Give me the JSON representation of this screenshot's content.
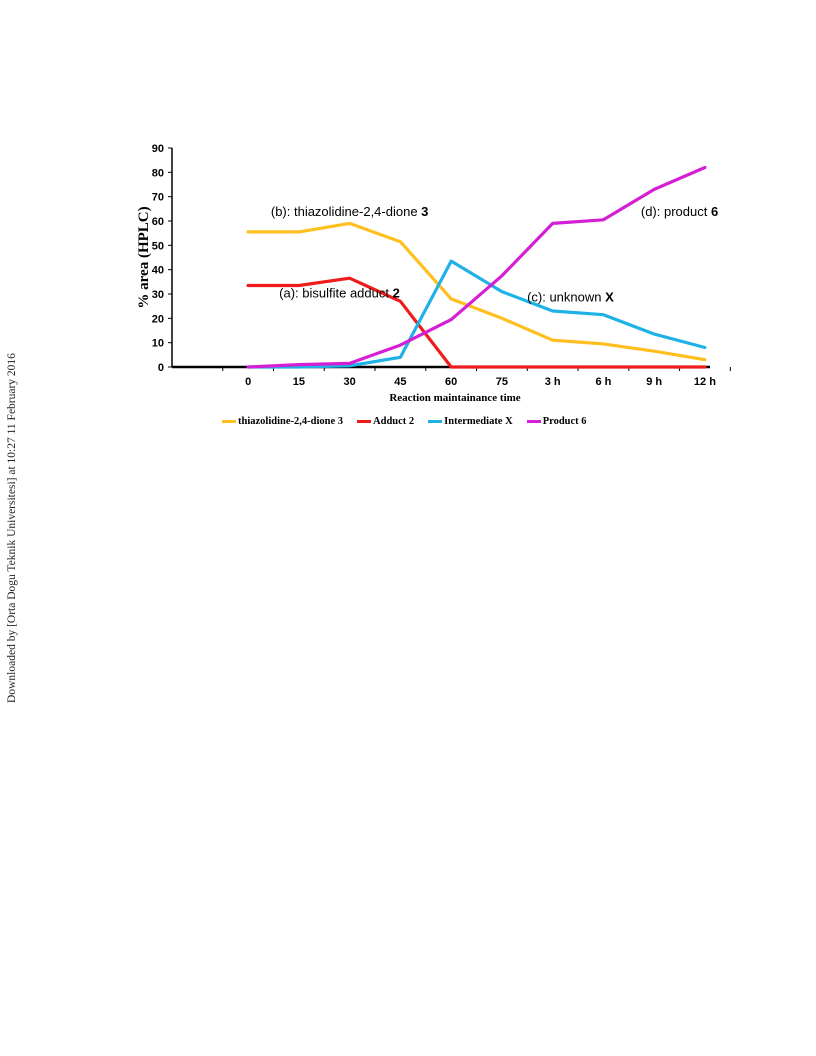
{
  "side_note": "Downloaded by [Orta Dogu Teknik Universitesi] at 10:27 11 February 2016",
  "chart_data": {
    "type": "line",
    "categories": [
      "",
      "0",
      "15",
      "30",
      "45",
      "60",
      "75",
      "3 h",
      "6 h",
      "9 h",
      "12 h"
    ],
    "xlabel": "Reaction maintainance time",
    "ylabel": "% area (HPLC)",
    "ylim": [
      0,
      90
    ],
    "yticks": [
      0,
      10,
      20,
      30,
      40,
      50,
      60,
      70,
      80,
      90
    ],
    "grid": false,
    "legend_position": "bottom",
    "series": [
      {
        "name": "thiazolidine-2,4-dione 3",
        "color": "#ffbf1f",
        "values": [
          null,
          55.5,
          55.5,
          59,
          51.5,
          28,
          20,
          11,
          9.5,
          6.5,
          3
        ]
      },
      {
        "name": "Adduct 2",
        "color": "#ee1c1c",
        "values": [
          null,
          33.5,
          33.5,
          36.5,
          27,
          0,
          0,
          0,
          0,
          0,
          0
        ]
      },
      {
        "name": "Intermediate X",
        "color": "#1fb2e6",
        "values": [
          null,
          0,
          0,
          0.5,
          4,
          43.5,
          31,
          23,
          21.5,
          13.5,
          8
        ]
      },
      {
        "name": "Product 6",
        "color": "#d51fd5",
        "values": [
          null,
          0,
          1,
          1.5,
          9,
          19.5,
          37.5,
          59,
          60.5,
          73,
          82
        ]
      }
    ],
    "annotations": [
      {
        "prefix": "(b): thiazolidine-2,4-dione ",
        "bold": "3",
        "at": [
          3.0,
          62
        ]
      },
      {
        "prefix": "(a): bisulfite adduct ",
        "bold": "2",
        "at": [
          2.8,
          28.5
        ]
      },
      {
        "prefix": "(d): product ",
        "bold": "6",
        "at": [
          9.5,
          62
        ]
      },
      {
        "prefix": "(c): unknown ",
        "bold": "X",
        "at": [
          7.35,
          27
        ]
      }
    ]
  }
}
